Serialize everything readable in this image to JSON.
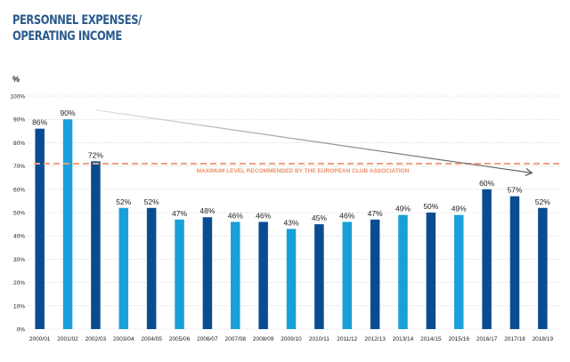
{
  "title": {
    "line1": "PERSONNEL EXPENSES/",
    "line2": "OPERATING INCOME"
  },
  "unit_label": "%",
  "colors": {
    "dark": "#0a4c91",
    "light": "#1aa0d8",
    "reference": "#f0a080",
    "reference_text": "#e8906a",
    "axis_text": "#222222",
    "grid": "#bfbfbf",
    "trend_start": "#e0e0e0",
    "trend_end": "#555555"
  },
  "chart_data": {
    "type": "bar",
    "categories": [
      "2000/01",
      "2001/02",
      "2002/03",
      "2003/04",
      "2004/05",
      "2005/06",
      "2006/07",
      "2007/08",
      "2008/09",
      "2009/10",
      "2010/11",
      "2011/12",
      "2012/13",
      "2013/14",
      "2014/15",
      "2015/16",
      "2016/17",
      "2017/18",
      "2018/19"
    ],
    "values": [
      86,
      90,
      72,
      52,
      52,
      47,
      48,
      46,
      46,
      43,
      45,
      46,
      47,
      49,
      50,
      49,
      60,
      57,
      52
    ],
    "data_labels": [
      "86%",
      "90%",
      "72%",
      "52%",
      "52%",
      "47%",
      "48%",
      "46%",
      "46%",
      "43%",
      "45%",
      "46%",
      "47%",
      "49%",
      "50%",
      "49%",
      "60%",
      "57%",
      "52%"
    ],
    "bar_shades": [
      "dark",
      "light",
      "dark",
      "light",
      "dark",
      "light",
      "dark",
      "light",
      "dark",
      "light",
      "dark",
      "light",
      "dark",
      "light",
      "dark",
      "light",
      "dark",
      "dark",
      "dark"
    ],
    "ylim": [
      0,
      100
    ],
    "y_ticks": [
      0,
      10,
      20,
      30,
      40,
      50,
      60,
      70,
      80,
      90,
      100
    ],
    "y_tick_labels": [
      "0%",
      "10%",
      "20%",
      "30%",
      "40%",
      "50%",
      "60%",
      "70%",
      "80%",
      "90%",
      "100%"
    ],
    "grid": true,
    "reference_line": {
      "value": 71,
      "label": "MAXIMUM LEVEL  RECOMMENDED BY THE EUROPEAN CLUB ASSOCIATION"
    },
    "trend_arrow": {
      "from": {
        "category_index": 2,
        "value": 94
      },
      "to": {
        "category_index": 18,
        "value": 67
      }
    }
  }
}
